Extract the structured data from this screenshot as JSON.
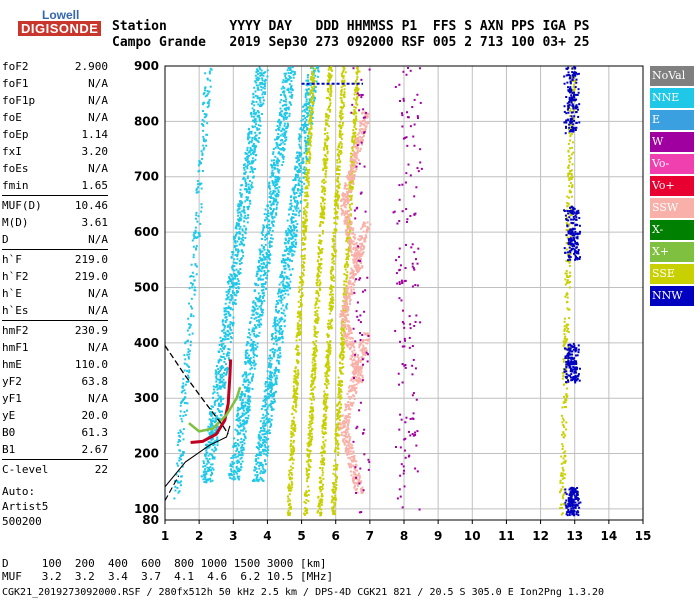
{
  "logo": {
    "line1": "Lowell",
    "line2": "DIGISONDE"
  },
  "header": {
    "row1": "Station        YYYY DAY   DDD HHMMSS P1  FFS S AXN PPS IGA PS",
    "row2": "Campo Grande   2019 Sep30 273 092000 RSF 005 2 713 100 03+ 25"
  },
  "params": [
    {
      "key": "foF2",
      "value": "2.900"
    },
    {
      "key": "foF1",
      "value": "N/A"
    },
    {
      "key": "foF1p",
      "value": "N/A"
    },
    {
      "key": "foE",
      "value": "N/A"
    },
    {
      "key": "foEp",
      "value": "1.14"
    },
    {
      "key": "fxI",
      "value": "3.20"
    },
    {
      "key": "foEs",
      "value": "N/A"
    },
    {
      "key": "fmin",
      "value": "1.65"
    },
    {
      "key": "MUF(D)",
      "value": "10.46",
      "sep": true
    },
    {
      "key": "M(D)",
      "value": "3.61"
    },
    {
      "key": "D",
      "value": "N/A"
    },
    {
      "key": "h`F",
      "value": "219.0",
      "sep": true
    },
    {
      "key": "h`F2",
      "value": "219.0"
    },
    {
      "key": "h`E",
      "value": "N/A"
    },
    {
      "key": "h`Es",
      "value": "N/A"
    },
    {
      "key": "hmF2",
      "value": "230.9",
      "sep": true
    },
    {
      "key": "hmF1",
      "value": "N/A"
    },
    {
      "key": "hmE",
      "value": "110.0"
    },
    {
      "key": "yF2",
      "value": "63.8"
    },
    {
      "key": "yF1",
      "value": "N/A"
    },
    {
      "key": "yE",
      "value": "20.0"
    },
    {
      "key": "B0",
      "value": "61.3"
    },
    {
      "key": "B1",
      "value": "2.67"
    },
    {
      "key": "C-level",
      "value": "22",
      "sep": true
    }
  ],
  "auto": {
    "line1": "Auto:",
    "line2": "Artist5",
    "line3": "500200"
  },
  "legend": [
    {
      "label": "NoVal",
      "color": "#808080"
    },
    {
      "label": "NNE",
      "color": "#20c8e8"
    },
    {
      "label": "E",
      "color": "#3aa0e0"
    },
    {
      "label": "W",
      "color": "#a000a0"
    },
    {
      "label": "Vo-",
      "color": "#f040b0"
    },
    {
      "label": "Vo+",
      "color": "#e80030"
    },
    {
      "label": "SSW",
      "color": "#f8b0a8"
    },
    {
      "label": "X-",
      "color": "#008000"
    },
    {
      "label": "X+",
      "color": "#80c040"
    },
    {
      "label": "SSE",
      "color": "#c8d000"
    },
    {
      "label": "NNW",
      "color": "#0000c0"
    }
  ],
  "chart_data": {
    "type": "scatter",
    "xlim": [
      1,
      15
    ],
    "ylim": [
      80,
      900
    ],
    "x_ticks": [
      "1",
      "2",
      "3",
      "4",
      "5",
      "6",
      "7",
      "8",
      "9",
      "10",
      "11",
      "12",
      "13",
      "14",
      "15"
    ],
    "y_ticks": [
      "80",
      "100",
      "200",
      "300",
      "400",
      "500",
      "600",
      "700",
      "800",
      "900"
    ],
    "grid": true
  },
  "bottom": {
    "row1": "D     100  200  400  600  800 1000 1500 3000 [km]",
    "row2": "MUF   3.2  3.2  3.4  3.7  4.1  4.6  6.2 10.5 [MHz]"
  },
  "footer": "CGK21_2019273092000.RSF / 280fx512h 50 kHz 2.5 km / DPS-4D CGK21 821 / 20.5 S 305.0 E Ion2Png 1.3.20"
}
